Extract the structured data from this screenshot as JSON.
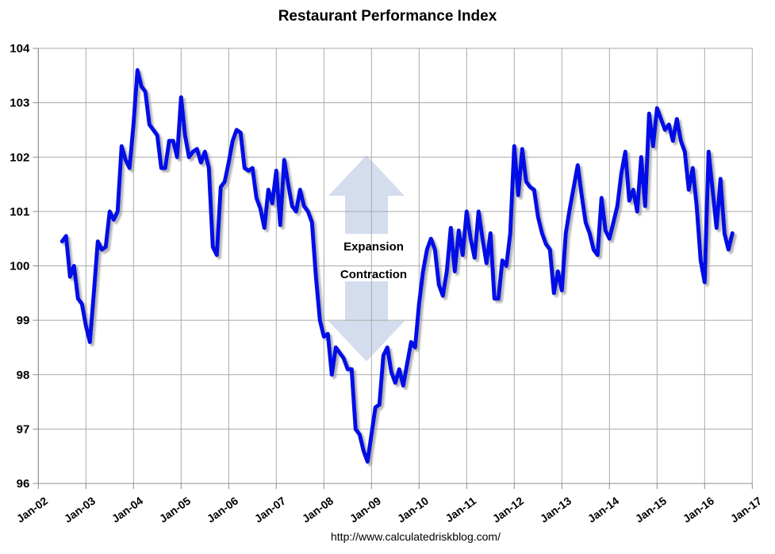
{
  "header": {
    "title": "Restaurant Performance Index"
  },
  "footer": {
    "source_url": "http://www.calculatedriskblog.com/"
  },
  "annotations": {
    "above_line": "Expansion",
    "below_line": "Contraction"
  },
  "colors": {
    "line": "#0011e6",
    "line_shadow": "#9a9a9a",
    "grid": "#a9a9a9",
    "axis": "#8c8c8c",
    "reference_line": "#000000",
    "arrow_fill": "#d3ddee",
    "text": "#000000",
    "background": "#ffffff"
  },
  "chart_data": {
    "type": "line",
    "title": "Restaurant Performance Index",
    "xlabel": "",
    "ylabel": "",
    "ylim": [
      96,
      104
    ],
    "y_tick_step": 1,
    "grid": true,
    "legend": "none",
    "x_tick_labels": [
      "Jan-02",
      "Jan-03",
      "Jan-04",
      "Jan-05",
      "Jan-06",
      "Jan-07",
      "Jan-08",
      "Jan-09",
      "Jan-10",
      "Jan-11",
      "Jan-12",
      "Jan-13",
      "Jan-14",
      "Jan-15",
      "Jan-16",
      "Jan-17"
    ],
    "x_axis_span_months": 180,
    "reference_line": {
      "value": 100,
      "label_above": "Expansion",
      "label_below": "Contraction"
    },
    "series": [
      {
        "name": "Restaurant Performance Index",
        "frequency": "monthly",
        "first_point": "Jul-2002",
        "last_point": "Aug-2016",
        "start_month_index": 6,
        "values": [
          100.45,
          100.55,
          99.8,
          100.0,
          99.4,
          99.3,
          98.9,
          98.6,
          99.5,
          100.45,
          100.3,
          100.35,
          101.0,
          100.85,
          101.0,
          102.2,
          101.95,
          101.8,
          102.6,
          103.6,
          103.3,
          103.2,
          102.6,
          102.5,
          102.4,
          101.8,
          101.8,
          102.3,
          102.3,
          102.0,
          103.1,
          102.4,
          102.0,
          102.1,
          102.15,
          101.9,
          102.1,
          101.8,
          100.35,
          100.2,
          101.45,
          101.55,
          101.9,
          102.3,
          102.5,
          102.45,
          101.8,
          101.75,
          101.8,
          101.25,
          101.05,
          100.7,
          101.4,
          101.15,
          101.75,
          100.75,
          101.95,
          101.5,
          101.1,
          101.0,
          101.4,
          101.1,
          101.0,
          100.8,
          99.8,
          99.0,
          98.7,
          98.75,
          98.0,
          98.5,
          98.4,
          98.3,
          98.1,
          98.1,
          97.0,
          96.9,
          96.6,
          96.4,
          96.9,
          97.4,
          97.45,
          98.35,
          98.5,
          98.05,
          97.85,
          98.1,
          97.8,
          98.2,
          98.6,
          98.5,
          99.3,
          99.9,
          100.3,
          100.5,
          100.3,
          99.65,
          99.45,
          99.9,
          100.7,
          99.9,
          100.65,
          100.2,
          101.0,
          100.5,
          100.15,
          101.0,
          100.5,
          100.05,
          100.6,
          99.4,
          99.4,
          100.1,
          100.0,
          100.6,
          102.2,
          101.3,
          102.15,
          101.55,
          101.45,
          101.4,
          100.9,
          100.6,
          100.4,
          100.3,
          99.5,
          99.9,
          99.55,
          100.6,
          101.05,
          101.45,
          101.85,
          101.3,
          100.8,
          100.6,
          100.3,
          100.2,
          101.25,
          100.65,
          100.5,
          100.8,
          101.1,
          101.7,
          102.1,
          101.2,
          101.4,
          101.0,
          102.0,
          101.1,
          102.8,
          102.2,
          102.9,
          102.7,
          102.5,
          102.6,
          102.3,
          102.7,
          102.3,
          102.1,
          101.4,
          101.8,
          101.1,
          100.1,
          99.7,
          102.1,
          101.4,
          100.7,
          101.6,
          100.6,
          100.3,
          100.6
        ]
      }
    ]
  }
}
